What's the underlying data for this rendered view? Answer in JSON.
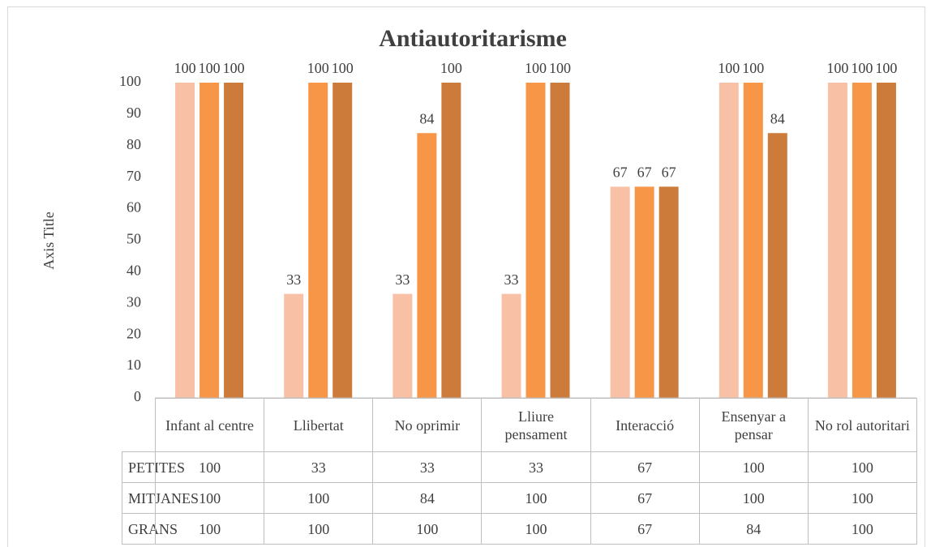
{
  "chart_data": {
    "type": "bar",
    "title": "Antiautoritarisme",
    "y_axis_label": "Axis Title",
    "categories": [
      "Infant al centre",
      "Llibertat",
      "No oprimir",
      "Lliure pensament",
      "Interacció",
      "Ensenyar a pensar",
      "No rol autoritari"
    ],
    "series": [
      {
        "name": "PETITES",
        "color": "#f8c1a6",
        "values": [
          100,
          33,
          33,
          33,
          67,
          100,
          100
        ]
      },
      {
        "name": "MITJANES",
        "color": "#f79646",
        "values": [
          100,
          100,
          84,
          100,
          67,
          100,
          100
        ]
      },
      {
        "name": "GRANS",
        "color": "#cd7b3a",
        "values": [
          100,
          100,
          100,
          100,
          67,
          84,
          100
        ]
      }
    ],
    "ylim": [
      0,
      100
    ],
    "yticks": [
      0,
      10,
      20,
      30,
      40,
      50,
      60,
      70,
      80,
      90,
      100
    ],
    "grid": false,
    "data_table": true
  }
}
